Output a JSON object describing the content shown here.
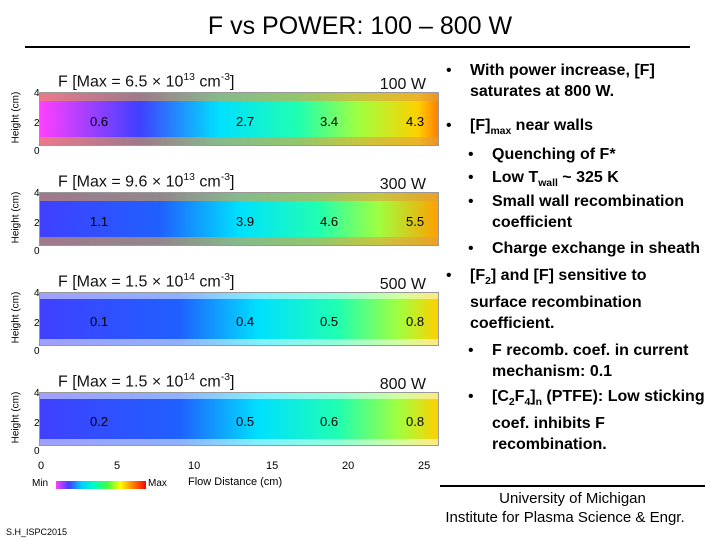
{
  "title": "F vs POWER: 100 – 800 W",
  "panels": [
    {
      "max_label": "F [Max = 6.5 × 10",
      "exp": "13",
      "unit": " cm",
      "unit_exp": "-3",
      "unit_close": "]",
      "power": "100 W",
      "values": [
        "0.6",
        "2.7",
        "3.4",
        "4.3"
      ]
    },
    {
      "max_label": "F [Max = 9.6 × 10",
      "exp": "13",
      "unit": " cm",
      "unit_exp": "-3",
      "unit_close": "]",
      "power": "300 W",
      "values": [
        "1.1",
        "3.9",
        "4.6",
        "5.5"
      ]
    },
    {
      "max_label": "F [Max = 1.5 × 10",
      "exp": "14",
      "unit": " cm",
      "unit_exp": "-3",
      "unit_close": "]",
      "power": "500 W",
      "values": [
        "0.1",
        "0.4",
        "0.5",
        "0.8"
      ]
    },
    {
      "max_label": "F [Max = 1.5 × 10",
      "exp": "14",
      "unit": " cm",
      "unit_exp": "-3",
      "unit_close": "]",
      "power": "800 W",
      "values": [
        "0.2",
        "0.5",
        "0.6",
        "0.8"
      ]
    }
  ],
  "ylabel": "Height (cm)",
  "yticks": [
    "4",
    "2",
    "0"
  ],
  "xticks": [
    "0",
    "5",
    "10",
    "15",
    "20",
    "25"
  ],
  "xlabel": "Flow Distance (cm)",
  "colorbar": {
    "min": "Min",
    "max": "Max"
  },
  "bullets": {
    "b1": "With power increase, [F] saturates at 800 W.",
    "b2a": "[F]",
    "b2sub": "max",
    "b2b": " near walls",
    "b3": "Quenching of F*",
    "b4a": "Low T",
    "b4sub": "wall",
    "b4b": " ~ 325 K",
    "b5": "Small wall recombination coefficient",
    "b6": "Charge exchange in sheath",
    "b7a": "[F",
    "b7sub": "2",
    "b7b": "] and [F] sensitive to surface recombination coefficient.",
    "b8": "F recomb. coef. in current mechanism: 0.1",
    "b9a": "[C",
    "b9sub1": "2",
    "b9b": "F",
    "b9sub2": "4",
    "b9c": "]",
    "b9sub3": "n",
    "b9d": " (PTFE): Low sticking coef. inhibits F recombination."
  },
  "footer": {
    "line1": "University of Michigan",
    "line2": "Institute for Plasma Science & Engr."
  },
  "credit": "S.H_ISPC2015"
}
